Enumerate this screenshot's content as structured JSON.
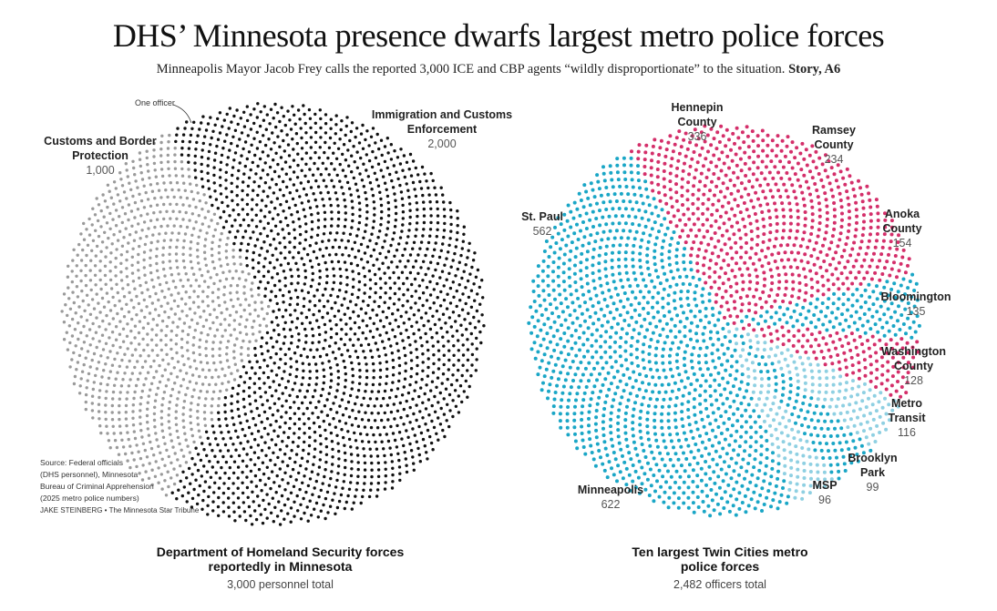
{
  "title": "DHS’ Minnesota presence dwarfs largest metro police forces",
  "subtitle": "Minneapolis Mayor Jacob Frey calls the reported 3,000 ICE and CBP agents “wildly disproportionate” to the situation.",
  "subtitle_ref": "Story, A6",
  "source": [
    "Source: Federal officials",
    "(DHS personnel), Minnesota",
    "Bureau of Criminal Apprehension",
    "(2025 metro police numbers)"
  ],
  "credit": "JAKE STEINBERG • The Minnesota Star Tribune",
  "annotation": "One officer",
  "chart_data": [
    {
      "type": "pie",
      "encoding": "one dot per officer",
      "caption": "Department of Homeland Security forces reportedly in Minnesota",
      "total_label": "3,000 personnel total",
      "slices": [
        {
          "name": "Customs and Border Protection",
          "value": 1000,
          "value_label": "1,000",
          "color": "#9a9a9a"
        },
        {
          "name": "Immigration and Customs Enforcement",
          "value": 2000,
          "value_label": "2,000",
          "color": "#111111"
        }
      ]
    },
    {
      "type": "pie",
      "encoding": "one dot per officer",
      "caption": "Ten largest Twin Cities metro police forces",
      "total_label": "2,482 officers total",
      "slices": [
        {
          "name": "Hennepin County",
          "value": 336,
          "color": "#d42f6a"
        },
        {
          "name": "Ramsey County",
          "value": 234,
          "color": "#d42f6a"
        },
        {
          "name": "Anoka County",
          "value": 154,
          "color": "#d42f6a"
        },
        {
          "name": "Bloomington",
          "value": 135,
          "color": "#1aa6c6"
        },
        {
          "name": "Washington County",
          "value": 128,
          "color": "#d42f6a"
        },
        {
          "name": "Metro Transit",
          "value": 116,
          "color": "#8fd0e2"
        },
        {
          "name": "Brooklyn Park",
          "value": 99,
          "color": "#1aa6c6"
        },
        {
          "name": "MSP",
          "value": 96,
          "color": "#8fd0e2"
        },
        {
          "name": "Minneapolis",
          "value": 622,
          "color": "#1aa6c6"
        },
        {
          "name": "St. Paul",
          "value": 562,
          "color": "#1aa6c6"
        }
      ]
    }
  ]
}
